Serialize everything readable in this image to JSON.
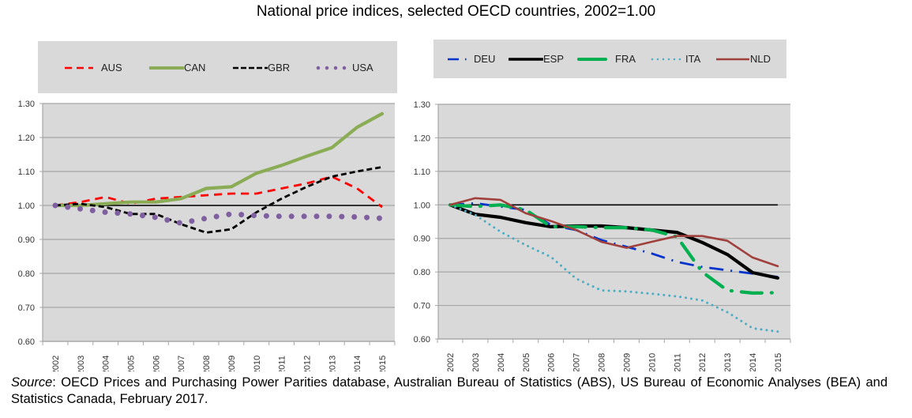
{
  "title": "National price indices, selected OECD countries, 2002=1.00",
  "source": {
    "label": "Source",
    "text": ": OECD Prices and Purchasing Power Parities database, Australian Bureau of Statistics (ABS), US Bureau of Economic Analyses (BEA) and Statistics Canada, February 2017."
  },
  "chart_data": [
    {
      "type": "line",
      "title": "",
      "xlabel": "",
      "ylabel": "",
      "x": [
        "2002",
        "2003",
        "2004",
        "2005",
        "2006",
        "2007",
        "2008",
        "2009",
        "2010",
        "2011",
        "2012",
        "2013",
        "2014",
        "2015"
      ],
      "ylim": [
        0.6,
        1.3
      ],
      "yticks": [
        "0.60",
        "0.70",
        "0.80",
        "0.90",
        "1.00",
        "1.10",
        "1.20",
        "1.30"
      ],
      "grid": true,
      "reference_line": 1.0,
      "legend_position": "top",
      "series": [
        {
          "name": "AUS",
          "color": "#ff0000",
          "style": "dashed",
          "values": [
            1.0,
            1.01,
            1.025,
            1.005,
            1.02,
            1.025,
            1.03,
            1.035,
            1.035,
            1.05,
            1.065,
            1.085,
            1.05,
            0.995
          ]
        },
        {
          "name": "CAN",
          "color": "#8aac55",
          "style": "solid-thick",
          "values": [
            1.0,
            1.0,
            1.005,
            1.01,
            1.01,
            1.02,
            1.05,
            1.055,
            1.095,
            1.118,
            1.145,
            1.17,
            1.23,
            1.27
          ]
        },
        {
          "name": "GBR",
          "color": "#000000",
          "style": "short-dashed",
          "values": [
            1.0,
            1.005,
            0.995,
            0.975,
            0.975,
            0.945,
            0.92,
            0.93,
            0.98,
            1.02,
            1.055,
            1.085,
            1.1,
            1.113
          ]
        },
        {
          "name": "USA",
          "color": "#7f5fa0",
          "style": "dotted-round",
          "values": [
            1.0,
            0.99,
            0.98,
            0.975,
            0.965,
            0.948,
            0.962,
            0.975,
            0.97,
            0.968,
            0.968,
            0.968,
            0.966,
            0.962
          ]
        }
      ]
    },
    {
      "type": "line",
      "title": "",
      "xlabel": "",
      "ylabel": "",
      "x": [
        "2002",
        "2003",
        "2004",
        "2005",
        "2006",
        "2007",
        "2008",
        "2009",
        "2010",
        "2011",
        "2012",
        "2013",
        "2014",
        "2015"
      ],
      "ylim": [
        0.6,
        1.3
      ],
      "yticks": [
        "0.60",
        "0.70",
        "0.80",
        "0.90",
        "1.00",
        "1.10",
        "1.20",
        "1.30"
      ],
      "grid": true,
      "reference_line": 1.0,
      "legend_position": "top",
      "series": [
        {
          "name": "DEU",
          "color": "#0033cc",
          "style": "dash-dot",
          "values": [
            1.0,
            1.005,
            0.995,
            0.985,
            0.94,
            0.925,
            0.895,
            0.875,
            0.855,
            0.83,
            0.815,
            0.805,
            0.795,
            0.785
          ]
        },
        {
          "name": "ESP",
          "color": "#000000",
          "style": "solid-thick",
          "values": [
            1.0,
            0.972,
            0.963,
            0.947,
            0.935,
            0.937,
            0.937,
            0.932,
            0.925,
            0.918,
            0.888,
            0.852,
            0.798,
            0.782
          ]
        },
        {
          "name": "FRA",
          "color": "#00b050",
          "style": "long-dash-dot",
          "values": [
            1.0,
            0.995,
            1.0,
            0.985,
            0.935,
            0.935,
            0.932,
            0.932,
            0.925,
            0.905,
            0.8,
            0.745,
            0.737,
            0.738
          ]
        },
        {
          "name": "ITA",
          "color": "#4bacc6",
          "style": "dotted",
          "values": [
            1.0,
            0.97,
            0.92,
            0.88,
            0.845,
            0.78,
            0.745,
            0.742,
            0.735,
            0.727,
            0.715,
            0.68,
            0.632,
            0.622
          ]
        },
        {
          "name": "NLD",
          "color": "#a0403c",
          "style": "solid",
          "values": [
            1.0,
            1.02,
            1.015,
            0.975,
            0.952,
            0.925,
            0.89,
            0.872,
            0.89,
            0.907,
            0.907,
            0.893,
            0.843,
            0.817
          ]
        }
      ]
    }
  ]
}
